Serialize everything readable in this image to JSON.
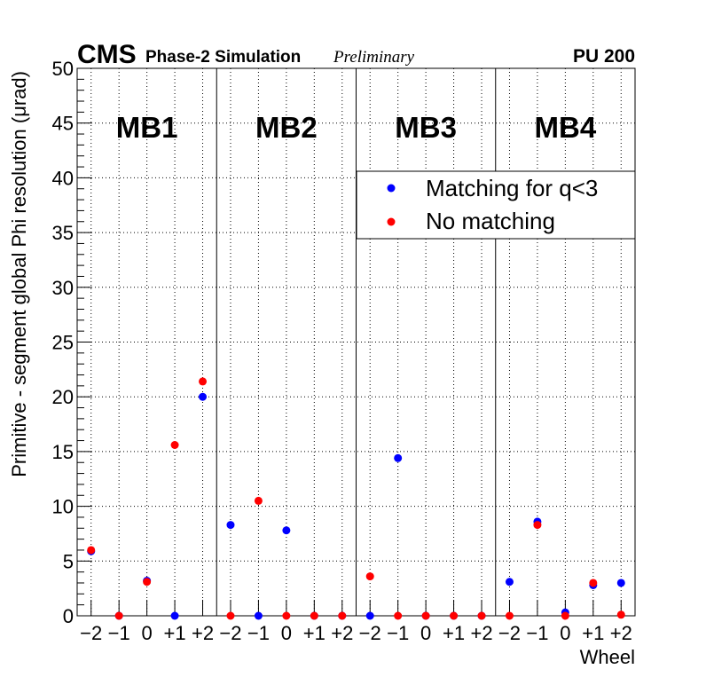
{
  "header": {
    "experiment": "CMS",
    "detail": "Phase-2 Simulation",
    "status": "Preliminary",
    "pileup": "PU 200"
  },
  "chart_data": {
    "type": "scatter",
    "xlabel": "Wheel",
    "ylabel": "Primitive - segment global Phi resolution (μrad)",
    "ylim": [
      0,
      50
    ],
    "yticks": [
      "0",
      "5",
      "10",
      "15",
      "20",
      "25",
      "30",
      "35",
      "40",
      "45",
      "50"
    ],
    "ytick_values": [
      0,
      5,
      10,
      15,
      20,
      25,
      30,
      35,
      40,
      45,
      50
    ],
    "grid": true,
    "legend_position": "top-right",
    "stations": [
      "MB1",
      "MB2",
      "MB3",
      "MB4"
    ],
    "wheel_labels": [
      "−2",
      "−1",
      "0",
      "+1",
      "+2"
    ],
    "series": [
      {
        "name": "Matching for q<3",
        "color": "#0000ff",
        "values": [
          [
            5.9,
            0.0,
            3.2,
            0.0,
            20.0
          ],
          [
            8.3,
            0.0,
            7.8,
            0.0,
            0.0
          ],
          [
            0.0,
            14.4,
            0.0,
            0.0,
            0.0
          ],
          [
            3.1,
            8.6,
            0.3,
            2.8,
            3.0
          ]
        ]
      },
      {
        "name": "No matching",
        "color": "#ff0000",
        "values": [
          [
            6.0,
            0.0,
            3.1,
            15.6,
            21.4
          ],
          [
            0.0,
            10.5,
            0.0,
            0.0,
            0.0
          ],
          [
            3.6,
            0.0,
            0.0,
            0.0,
            0.0
          ],
          [
            0.0,
            8.3,
            0.0,
            3.0,
            0.1
          ]
        ]
      }
    ]
  }
}
